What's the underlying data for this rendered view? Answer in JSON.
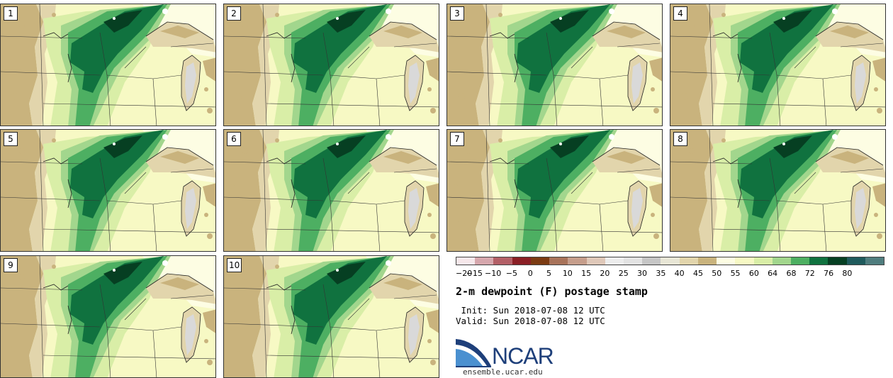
{
  "panels": [
    "1",
    "2",
    "3",
    "4",
    "5",
    "6",
    "7",
    "8",
    "9",
    "10"
  ],
  "chart_data": {
    "type": "heatmap",
    "title": "2-m dewpoint (F) postage stamp",
    "init": " Init: Sun 2018-07-08 12 UTC",
    "valid": "Valid: Sun 2018-07-08 12 UTC",
    "colorbar": {
      "ticks": [
        "−20",
        "−15",
        "−10",
        "−5",
        "0",
        "5",
        "10",
        "15",
        "20",
        "25",
        "30",
        "35",
        "40",
        "45",
        "50",
        "55",
        "60",
        "64",
        "68",
        "72",
        "76",
        "80"
      ],
      "colors": [
        "#f6e7ea",
        "#d6a7ad",
        "#b36067",
        "#8a1f25",
        "#7b3b13",
        "#a8735a",
        "#c69e8c",
        "#dfc8b9",
        "#ededed",
        "#e3e3e3",
        "#c6c6c6",
        "#e8e6d6",
        "#e2d5ac",
        "#c9b37d",
        "#fdfde3",
        "#f7f9c4",
        "#d9eea7",
        "#a2d68d",
        "#4daf62",
        "#10723f",
        "#063f22",
        "#1f5a5c",
        "#4f7d7e"
      ]
    },
    "map_colors": {
      "dry": "#c9b37d",
      "dry_light": "#e2d5ac",
      "pale": "#fdfde3",
      "base": "#f7f9c4",
      "light_green": "#d9eea7",
      "mid_green": "#a2d68d",
      "green": "#4daf62",
      "dark_green": "#10723f",
      "darkest_green": "#063f22",
      "lake": "#d9d9d9"
    }
  },
  "branding": {
    "logo": "NCAR",
    "url": "ensemble.ucar.edu"
  }
}
